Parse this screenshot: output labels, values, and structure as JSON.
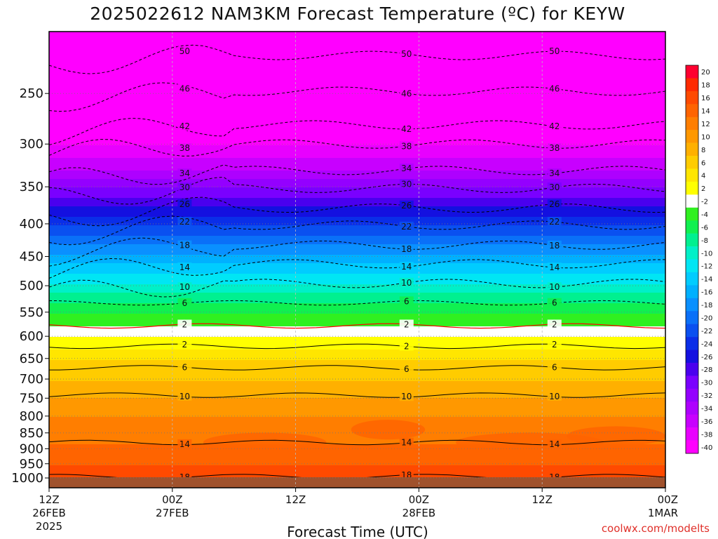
{
  "chart_data": {
    "type": "heatmap",
    "title": "2025022612 NAM3KM Forecast Temperature (ºC) for KEYW",
    "xlabel": "Forecast Time (UTC)",
    "ylabel": "",
    "x_ticks": [
      {
        "hours": 0,
        "label": "12Z",
        "sub": "26FEB",
        "sub2": "2025"
      },
      {
        "hours": 12,
        "label": "00Z",
        "sub": "27FEB",
        "sub2": ""
      },
      {
        "hours": 24,
        "label": "12Z",
        "sub": "",
        "sub2": ""
      },
      {
        "hours": 36,
        "label": "00Z",
        "sub": "28FEB",
        "sub2": ""
      },
      {
        "hours": 48,
        "label": "12Z",
        "sub": "",
        "sub2": ""
      },
      {
        "hours": 60,
        "label": "00Z",
        "sub": "1MAR",
        "sub2": ""
      }
    ],
    "xlim": [
      0,
      60
    ],
    "y_ticks": [
      250,
      300,
      350,
      400,
      450,
      500,
      550,
      600,
      650,
      700,
      750,
      800,
      850,
      900,
      950,
      1000
    ],
    "ylim": [
      1036,
      200
    ],
    "y_scale": "log",
    "colorbar": {
      "levels": [
        -40,
        -38,
        -36,
        -34,
        -32,
        -30,
        -28,
        -26,
        -24,
        -22,
        -20,
        -18,
        -16,
        -14,
        -12,
        -10,
        -8,
        -6,
        -4,
        -2,
        2,
        4,
        6,
        8,
        10,
        12,
        14,
        16,
        18,
        20
      ],
      "colors": [
        "#ff00ff",
        "#e800ff",
        "#c800ff",
        "#ae00ff",
        "#9400ff",
        "#7a00ff",
        "#4a00ee",
        "#1410e0",
        "#0a2ee8",
        "#0a50f0",
        "#0a70f8",
        "#0a90ff",
        "#00b0ff",
        "#00ccff",
        "#00e6f4",
        "#00f0c8",
        "#00f090",
        "#10f050",
        "#30f020",
        "#ffffff",
        "#ffff00",
        "#ffe600",
        "#ffcc00",
        "#ffb000",
        "#ff9800",
        "#ff7e00",
        "#ff6400",
        "#ff4a00",
        "#ff2a00",
        "#ff0030"
      ]
    },
    "profile": [
      {
        "p": 200,
        "t": -50
      },
      {
        "p": 220,
        "t": -48
      },
      {
        "p": 250,
        "t": -46
      },
      {
        "p": 280,
        "t": -42
      },
      {
        "p": 300,
        "t": -38
      },
      {
        "p": 330,
        "t": -34
      },
      {
        "p": 350,
        "t": -30
      },
      {
        "p": 375,
        "t": -26
      },
      {
        "p": 400,
        "t": -22
      },
      {
        "p": 430,
        "t": -18
      },
      {
        "p": 460,
        "t": -14
      },
      {
        "p": 495,
        "t": -10
      },
      {
        "p": 530,
        "t": -6
      },
      {
        "p": 575,
        "t": -2
      },
      {
        "p": 600,
        "t": 2
      },
      {
        "p": 650,
        "t": 6
      },
      {
        "p": 700,
        "t": 8
      },
      {
        "p": 745,
        "t": 10
      },
      {
        "p": 800,
        "t": 12
      },
      {
        "p": 880,
        "t": 14
      },
      {
        "p": 950,
        "t": 16
      },
      {
        "p": 1000,
        "t": 18
      },
      {
        "p": 1036,
        "t": 20
      }
    ],
    "contours": [
      {
        "label": "50",
        "t": -50,
        "p": 218
      },
      {
        "label": "46",
        "t": -46,
        "p": 248
      },
      {
        "label": "42",
        "t": -42,
        "p": 280
      },
      {
        "label": "38",
        "t": -38,
        "p": 300
      },
      {
        "label": "34",
        "t": -34,
        "p": 330
      },
      {
        "label": "30",
        "t": -30,
        "p": 352
      },
      {
        "label": "26",
        "t": -26,
        "p": 378
      },
      {
        "label": "22",
        "t": -22,
        "p": 402
      },
      {
        "label": "18",
        "t": -18,
        "p": 432
      },
      {
        "label": "14",
        "t": -14,
        "p": 462
      },
      {
        "label": "10",
        "t": -10,
        "p": 496
      },
      {
        "label": "6",
        "t": -6,
        "p": 532
      },
      {
        "label": "2",
        "t": -2,
        "p": 578
      },
      {
        "label": "2",
        "t": 2,
        "p": 622
      },
      {
        "label": "6",
        "t": 6,
        "p": 672
      },
      {
        "label": "10",
        "t": 10,
        "p": 742
      },
      {
        "label": "14",
        "t": 14,
        "p": 880
      },
      {
        "label": "18",
        "t": 18,
        "p": 995
      }
    ],
    "credit": "coolwx.com/modelts"
  }
}
